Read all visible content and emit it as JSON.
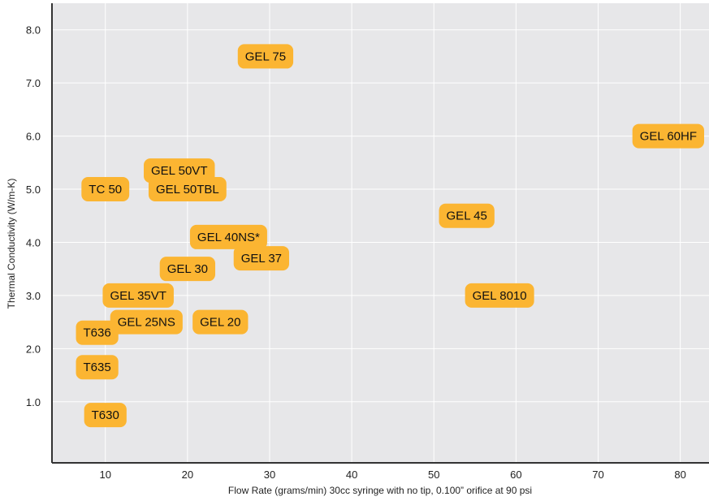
{
  "chart_data": {
    "type": "scatter",
    "title": "",
    "xlabel": "Flow Rate (grams/min) 30cc syringe with no tip, 0.100” orifice at 90 psi",
    "ylabel": "Thermal Conductivity (W/m-K)",
    "xlim": [
      3.5,
      83.5
    ],
    "ylim": [
      -0.15,
      8.5
    ],
    "xticks": [
      10,
      20,
      30,
      40,
      50,
      60,
      70,
      80
    ],
    "yticks": [
      1.0,
      2.0,
      3.0,
      4.0,
      5.0,
      6.0,
      7.0,
      8.0
    ],
    "ytick_labels": [
      "1.0",
      "2.0",
      "3.0",
      "4.0",
      "5.0",
      "6.0",
      "7.0",
      "8.0"
    ],
    "grid": true,
    "colors": {
      "plot_bg": "#e7e7e9",
      "grid": "#ffffff",
      "marker": "#fbb532",
      "axis": "#333333"
    },
    "points": [
      {
        "label": "GEL 75",
        "x": 29.5,
        "y": 7.5
      },
      {
        "label": "GEL 60HF",
        "x": 80,
        "y": 6.0
      },
      {
        "label": "GEL 50VT",
        "x": 19,
        "y": 5.35
      },
      {
        "label": "GEL 50TBL",
        "x": 20,
        "y": 5.0
      },
      {
        "label": "TC 50",
        "x": 10,
        "y": 5.0
      },
      {
        "label": "GEL 45",
        "x": 54,
        "y": 4.5
      },
      {
        "label": "GEL 40NS*",
        "x": 25,
        "y": 4.1
      },
      {
        "label": "GEL 37",
        "x": 29,
        "y": 3.7
      },
      {
        "label": "GEL 30",
        "x": 20,
        "y": 3.5
      },
      {
        "label": "GEL 35VT",
        "x": 14,
        "y": 3.0
      },
      {
        "label": "GEL 8010",
        "x": 58,
        "y": 3.0
      },
      {
        "label": "GEL 25NS",
        "x": 15,
        "y": 2.5
      },
      {
        "label": "GEL 20",
        "x": 24,
        "y": 2.5
      },
      {
        "label": "T636",
        "x": 9,
        "y": 2.3
      },
      {
        "label": "T635",
        "x": 9,
        "y": 1.65
      },
      {
        "label": "T630",
        "x": 10,
        "y": 0.75
      }
    ]
  }
}
